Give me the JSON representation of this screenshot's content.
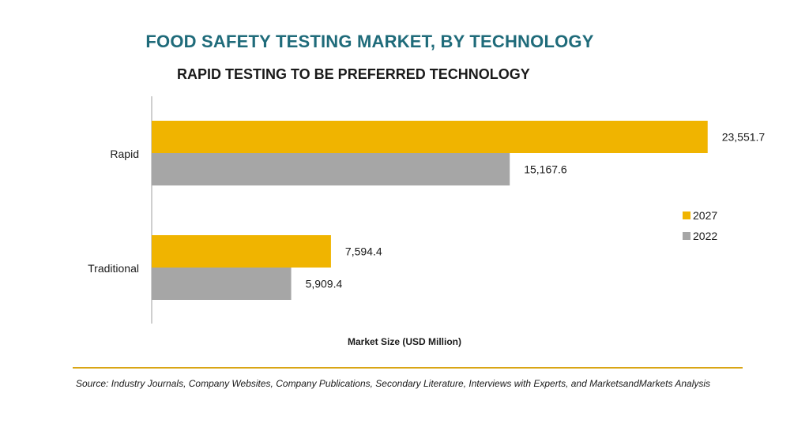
{
  "chart_data": {
    "type": "bar",
    "orientation": "horizontal",
    "title": "FOOD SAFETY TESTING MARKET, BY TECHNOLOGY",
    "subtitle": "RAPID TESTING TO BE PREFERRED TECHNOLOGY",
    "categories": [
      "Rapid",
      "Traditional"
    ],
    "series": [
      {
        "name": "2027",
        "values": [
          23551.7,
          7594.4
        ],
        "value_labels": [
          "23,551.7",
          "7,594.4"
        ],
        "color": "#f0b400"
      },
      {
        "name": "2022",
        "values": [
          15167.6,
          5909.4
        ],
        "value_labels": [
          "15,167.6",
          "5,909.4"
        ],
        "color": "#a6a6a6"
      }
    ],
    "xlabel": "Market Size (USD Million)",
    "xlim": [
      0,
      25000
    ],
    "grid": false,
    "legend_position": "right",
    "axis_color": "#bfbfbf",
    "label_color": "#1a1a1a"
  },
  "source_text": "Source: Industry Journals, Company Websites, Company Publications, Secondary Literature, Interviews with Experts, and MarketsandMarkets Analysis",
  "colors": {
    "title": "#1f6b7a",
    "divider": "#d9a515"
  }
}
